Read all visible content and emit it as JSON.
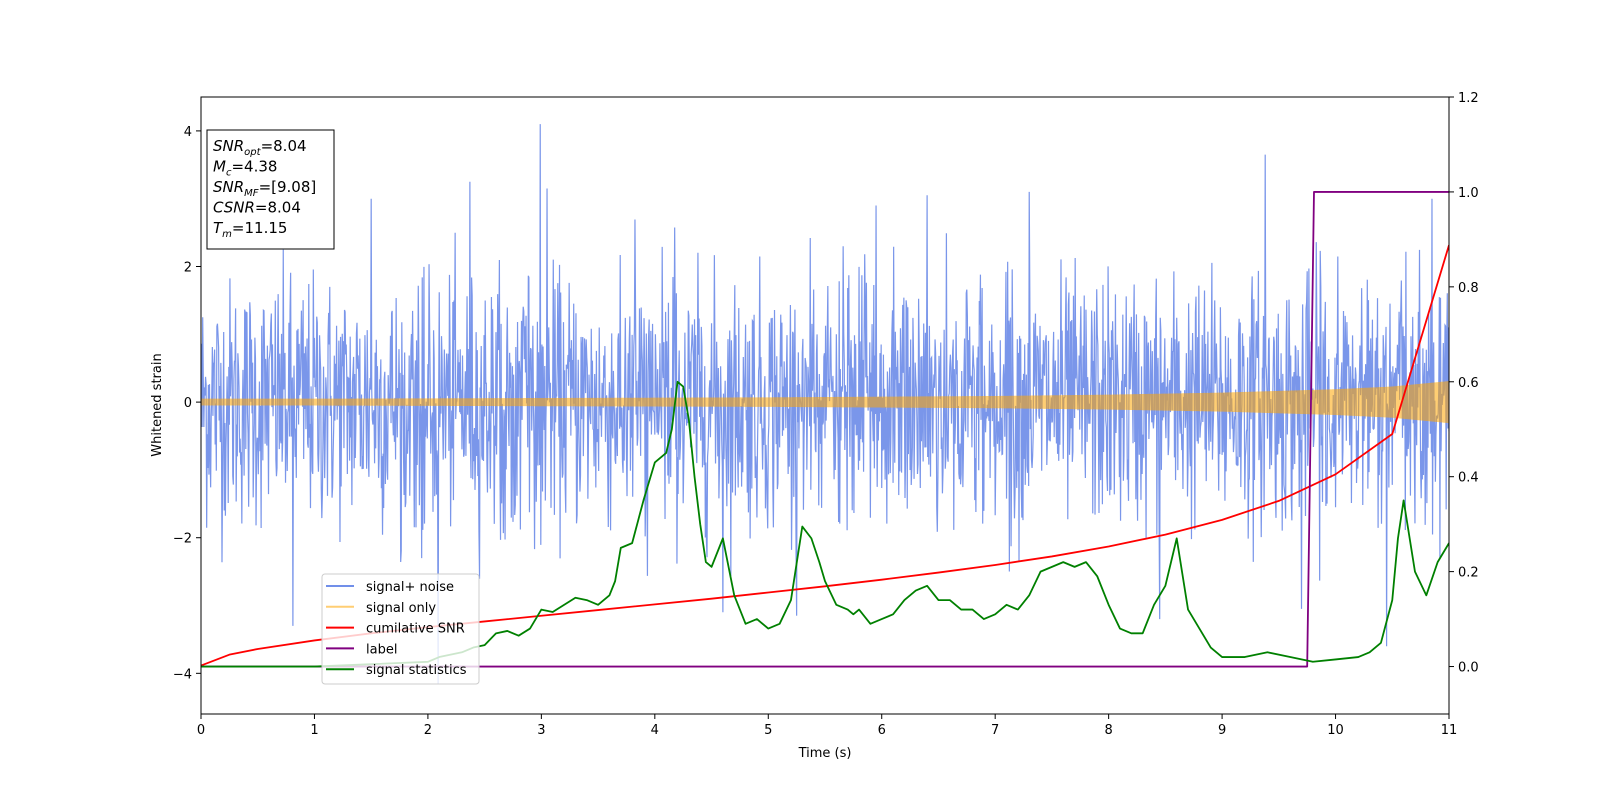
{
  "chart_data": {
    "type": "line",
    "xlabel": "Time (s)",
    "ylabel": "Whitened strain",
    "xlim": [
      0,
      11
    ],
    "ylim_left": [
      -4.6,
      4.5
    ],
    "ylim_right": [
      -0.1,
      1.2
    ],
    "x_ticks": [
      "0",
      "1",
      "2",
      "3",
      "4",
      "5",
      "6",
      "7",
      "8",
      "9",
      "10",
      "11"
    ],
    "y_ticks_left": [
      "−4",
      "−2",
      "0",
      "2",
      "4"
    ],
    "y_ticks_right": [
      "0.0",
      "0.2",
      "0.4",
      "0.6",
      "0.8",
      "1.0",
      "1.2"
    ],
    "grid": false,
    "legend_position": "lower-left",
    "series": [
      {
        "name": "signal+ noise",
        "axis": "left",
        "color": "#4169e1",
        "envelope": {
          "x": [
            0,
            1,
            2,
            3,
            4,
            5,
            6,
            7,
            8,
            9,
            10,
            11
          ],
          "ymax": [
            2.5,
            2.7,
            2.6,
            2.8,
            2.7,
            2.6,
            2.7,
            2.7,
            2.6,
            2.8,
            2.7,
            2.7
          ],
          "ymin": [
            -2.5,
            -2.7,
            -2.7,
            -2.6,
            -2.7,
            -2.6,
            -2.7,
            -2.6,
            -2.7,
            -2.6,
            -2.7,
            -2.7
          ]
        },
        "spikes": [
          [
            2.99,
            4.1
          ],
          [
            2.09,
            -4.15
          ],
          [
            2.37,
            3.25
          ],
          [
            9.38,
            3.65
          ],
          [
            0.81,
            -3.3
          ],
          [
            3.05,
            3.15
          ],
          [
            5.25,
            -3.15
          ],
          [
            10.45,
            -3.6
          ],
          [
            7.3,
            3.1
          ],
          [
            8.45,
            -3.2
          ],
          [
            6.4,
            3.05
          ],
          [
            9.7,
            -3.05
          ],
          [
            1.5,
            3.0
          ],
          [
            4.6,
            -3.1
          ],
          [
            5.95,
            2.9
          ],
          [
            10.85,
            3.0
          ]
        ]
      },
      {
        "name": "signal only",
        "axis": "left",
        "color": "#ffa500",
        "x": [
          0,
          1,
          2,
          3,
          4,
          5,
          6,
          7,
          8,
          9,
          10,
          10.5,
          11
        ],
        "amplitude": [
          0.05,
          0.05,
          0.055,
          0.06,
          0.065,
          0.07,
          0.08,
          0.09,
          0.11,
          0.14,
          0.19,
          0.23,
          0.31
        ]
      },
      {
        "name": "cumilative SNR",
        "axis": "right",
        "color": "#ff0000",
        "x": [
          0,
          0.25,
          0.5,
          1,
          1.5,
          2,
          2.5,
          3,
          3.5,
          4,
          4.5,
          5,
          5.5,
          6,
          6.5,
          7,
          7.5,
          8,
          8.5,
          9,
          9.5,
          10,
          10.5,
          11
        ],
        "y": [
          0.002,
          0.025,
          0.037,
          0.055,
          0.07,
          0.083,
          0.095,
          0.107,
          0.119,
          0.131,
          0.143,
          0.156,
          0.169,
          0.183,
          0.198,
          0.214,
          0.232,
          0.253,
          0.278,
          0.309,
          0.349,
          0.405,
          0.49,
          0.888
        ]
      },
      {
        "name": "label",
        "axis": "right",
        "color": "#800080",
        "x": [
          0,
          9.75,
          9.81,
          11
        ],
        "y": [
          0.0,
          0.0,
          1.0,
          1.0
        ]
      },
      {
        "name": "signal statistics",
        "axis": "right",
        "color": "#008000",
        "x": [
          0,
          0.5,
          1,
          1.5,
          2,
          2.1,
          2.3,
          2.4,
          2.5,
          2.6,
          2.7,
          2.8,
          2.9,
          3.0,
          3.1,
          3.2,
          3.3,
          3.4,
          3.5,
          3.6,
          3.65,
          3.7,
          3.8,
          3.9,
          4.0,
          4.05,
          4.1,
          4.15,
          4.2,
          4.25,
          4.3,
          4.35,
          4.4,
          4.45,
          4.5,
          4.6,
          4.7,
          4.8,
          4.9,
          5.0,
          5.1,
          5.2,
          5.3,
          5.38,
          5.45,
          5.5,
          5.6,
          5.7,
          5.75,
          5.8,
          5.9,
          6.0,
          6.1,
          6.2,
          6.3,
          6.4,
          6.5,
          6.6,
          6.7,
          6.8,
          6.9,
          7.0,
          7.1,
          7.2,
          7.3,
          7.4,
          7.5,
          7.6,
          7.7,
          7.8,
          7.9,
          8.0,
          8.1,
          8.2,
          8.3,
          8.4,
          8.5,
          8.6,
          8.7,
          8.8,
          8.9,
          9.0,
          9.2,
          9.4,
          9.6,
          9.8,
          10.0,
          10.2,
          10.3,
          10.4,
          10.5,
          10.55,
          10.6,
          10.7,
          10.8,
          10.9,
          11.0
        ],
        "y": [
          0.0,
          0.0,
          0.0,
          0.005,
          0.01,
          0.02,
          0.03,
          0.04,
          0.045,
          0.07,
          0.075,
          0.065,
          0.08,
          0.12,
          0.115,
          0.13,
          0.145,
          0.14,
          0.13,
          0.15,
          0.18,
          0.25,
          0.26,
          0.35,
          0.43,
          0.44,
          0.45,
          0.5,
          0.6,
          0.59,
          0.52,
          0.4,
          0.3,
          0.22,
          0.21,
          0.27,
          0.15,
          0.09,
          0.1,
          0.08,
          0.09,
          0.14,
          0.295,
          0.27,
          0.22,
          0.18,
          0.13,
          0.12,
          0.11,
          0.12,
          0.09,
          0.1,
          0.11,
          0.14,
          0.16,
          0.17,
          0.14,
          0.14,
          0.12,
          0.12,
          0.1,
          0.11,
          0.13,
          0.12,
          0.15,
          0.2,
          0.21,
          0.22,
          0.21,
          0.22,
          0.19,
          0.13,
          0.08,
          0.07,
          0.07,
          0.13,
          0.17,
          0.27,
          0.12,
          0.08,
          0.04,
          0.02,
          0.02,
          0.03,
          0.02,
          0.01,
          0.015,
          0.02,
          0.03,
          0.05,
          0.14,
          0.27,
          0.35,
          0.2,
          0.15,
          0.22,
          0.26
        ]
      }
    ],
    "annotations": [
      {
        "label": "SNR",
        "sub": "opt",
        "value": "=8.04"
      },
      {
        "label": "M",
        "sub": "c",
        "value": "=4.38"
      },
      {
        "label": "SNR",
        "sub": "MF",
        "value": "=[9.08]"
      },
      {
        "label": "CSNR",
        "sub": "",
        "value": "=8.04"
      },
      {
        "label": "T",
        "sub": "m",
        "value": "=11.15"
      }
    ]
  }
}
